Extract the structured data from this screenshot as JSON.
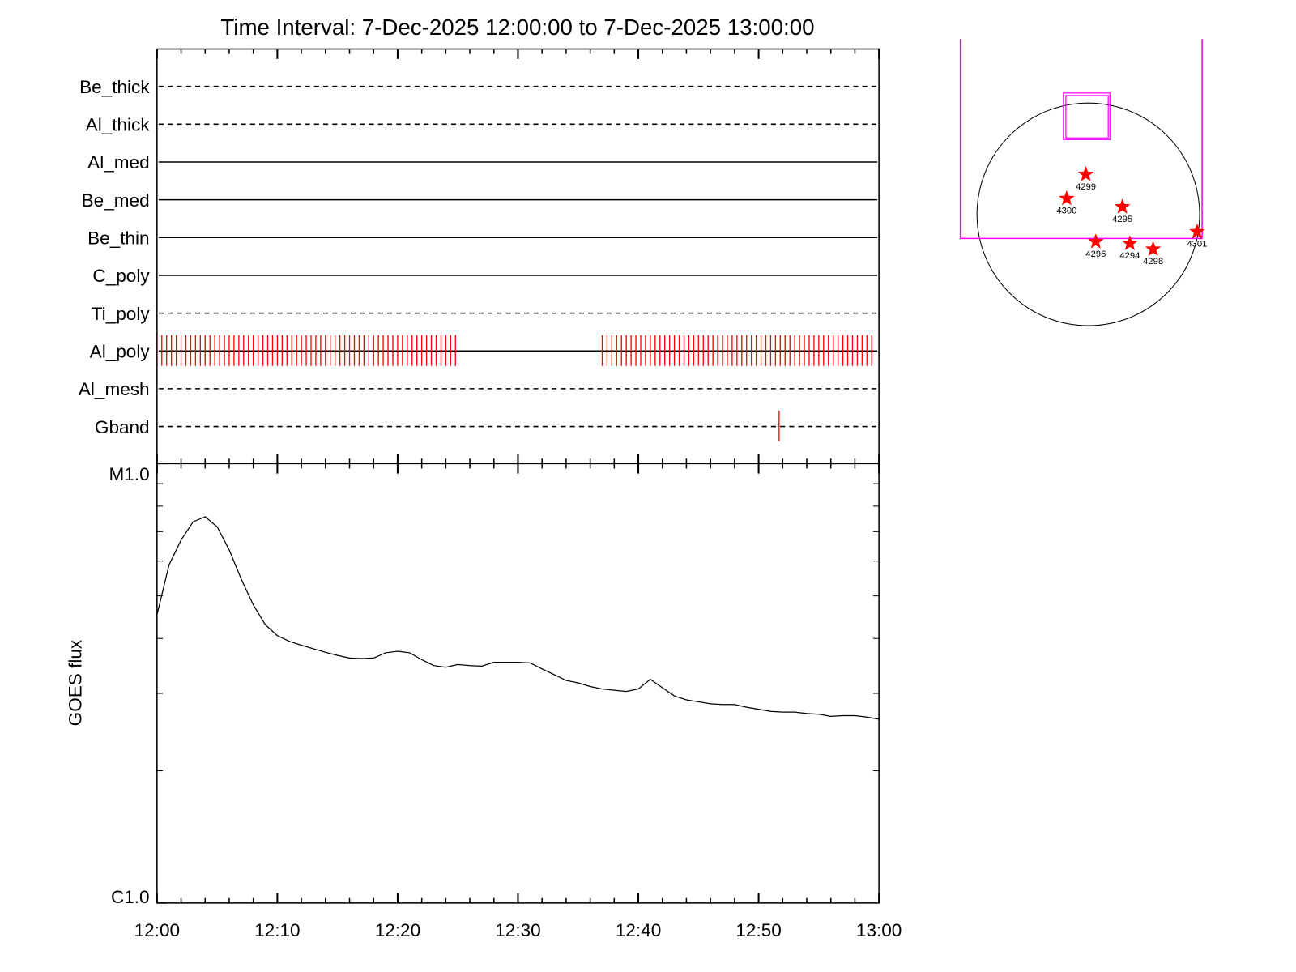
{
  "chart_data": [
    {
      "type": "event",
      "title": "Time Interval:  7-Dec-2025 12:00:00 to  7-Dec-2025 13:00:00",
      "categories": [
        "Be_thick",
        "Al_thick",
        "Al_med",
        "Be_med",
        "Be_thin",
        "C_poly",
        "Ti_poly",
        "Al_poly",
        "Al_mesh",
        "Gband"
      ],
      "line_styles": [
        "dashed",
        "dashed",
        "solid",
        "solid",
        "solid",
        "solid",
        "dashed",
        "solid",
        "dashed",
        "dashed"
      ],
      "events": [
        [],
        [],
        [],
        [],
        [],
        [],
        [],
        [
          0.4,
          0.8,
          1.2,
          1.6,
          2,
          2.4,
          2.8,
          3.2,
          3.6,
          4,
          4.4,
          4.8,
          5.2,
          5.6,
          6,
          6.4,
          6.8,
          7.2,
          7.6,
          8,
          8.4,
          8.8,
          9.2,
          9.6,
          10,
          10.4,
          10.8,
          11.2,
          11.6,
          12,
          12.4,
          12.8,
          13.2,
          13.6,
          14,
          14.4,
          14.8,
          15.2,
          15.6,
          16,
          16.4,
          16.8,
          17.2,
          17.6,
          18,
          18.4,
          18.8,
          19.2,
          19.6,
          20,
          20.4,
          20.8,
          21.2,
          21.6,
          22,
          22.4,
          22.8,
          23.2,
          23.6,
          24,
          24.4,
          24.8,
          37,
          37.4,
          37.8,
          38.2,
          38.6,
          39,
          39.4,
          39.8,
          40.2,
          40.6,
          41,
          41.4,
          41.8,
          42.2,
          42.6,
          43,
          43.4,
          43.8,
          44.2,
          44.6,
          45,
          45.4,
          45.8,
          46.2,
          46.6,
          47,
          47.4,
          47.8,
          48.2,
          48.6,
          49,
          49.4,
          49.8,
          50.2,
          50.6,
          51,
          51.4,
          51.8,
          52.2,
          52.6,
          53,
          53.4,
          53.8,
          54.2,
          54.6,
          55,
          55.4,
          55.8,
          56.2,
          56.6,
          57,
          57.4,
          57.8,
          58.2,
          58.6,
          59,
          59.4
        ],
        [],
        [
          51.7
        ]
      ],
      "color": "#ff0000",
      "xlim": [
        0,
        60
      ]
    },
    {
      "type": "line",
      "ylabel": "GOES flux",
      "x": [
        0,
        1,
        2,
        3,
        4,
        5,
        6,
        7,
        8,
        9,
        10,
        11,
        12,
        13,
        14,
        15,
        16,
        17,
        18,
        19,
        20,
        21,
        22,
        23,
        24,
        25,
        26,
        27,
        28,
        29,
        30,
        31,
        32,
        33,
        34,
        35,
        36,
        37,
        38,
        39,
        40,
        41,
        42,
        43,
        44,
        45,
        46,
        47,
        48,
        49,
        50,
        51,
        52,
        53,
        54,
        55,
        56,
        57,
        58,
        59,
        60
      ],
      "values": [
        4.53e-06,
        5.88e-06,
        6.7e-06,
        7.37e-06,
        7.57e-06,
        7.18e-06,
        6.36e-06,
        5.46e-06,
        4.77e-06,
        4.3e-06,
        4.06e-06,
        3.94e-06,
        3.86e-06,
        3.79e-06,
        3.72e-06,
        3.66e-06,
        3.61e-06,
        3.6e-06,
        3.61e-06,
        3.71e-06,
        3.74e-06,
        3.71e-06,
        3.58e-06,
        3.47e-06,
        3.44e-06,
        3.49e-06,
        3.47e-06,
        3.46e-06,
        3.53e-06,
        3.53e-06,
        3.53e-06,
        3.52e-06,
        3.41e-06,
        3.31e-06,
        3.21e-06,
        3.17e-06,
        3.11e-06,
        3.07e-06,
        3.05e-06,
        3.03e-06,
        3.07e-06,
        3.23e-06,
        3.09e-06,
        2.96e-06,
        2.9e-06,
        2.87e-06,
        2.84e-06,
        2.83e-06,
        2.83e-06,
        2.79e-06,
        2.76e-06,
        2.73e-06,
        2.72e-06,
        2.72e-06,
        2.7e-06,
        2.69e-06,
        2.66e-06,
        2.67e-06,
        2.67e-06,
        2.65e-06,
        2.62e-06
      ],
      "color": "#000000",
      "xlim": [
        0,
        60
      ],
      "xticks": [
        {
          "value": 0,
          "label": "12:00"
        },
        {
          "value": 10,
          "label": "12:10"
        },
        {
          "value": 20,
          "label": "12:20"
        },
        {
          "value": 30,
          "label": "12:30"
        },
        {
          "value": 40,
          "label": "12:40"
        },
        {
          "value": 50,
          "label": "12:50"
        },
        {
          "value": 60,
          "label": "13:00"
        }
      ],
      "xminor_ticks": [
        2,
        4,
        6,
        8,
        12,
        14,
        16,
        18,
        22,
        24,
        26,
        28,
        32,
        34,
        36,
        38,
        42,
        44,
        46,
        48,
        52,
        54,
        56,
        58
      ],
      "ylim": [
        1e-06,
        1e-05
      ],
      "log_y": true,
      "yticks": [
        {
          "value": 1e-06,
          "label": "C1.0"
        },
        {
          "value": 1e-05,
          "label": "M1.0"
        }
      ],
      "yminor_ticks": [
        2e-06,
        3e-06,
        4e-06,
        5e-06,
        6e-06,
        7e-06,
        8e-06,
        9e-06
      ]
    },
    {
      "type": "map",
      "regions": [
        "4299",
        "4300",
        "4295",
        "4301",
        "4296",
        "4294",
        "4298"
      ],
      "color": "#ff0000",
      "fov_color": "#ff00ff"
    }
  ]
}
